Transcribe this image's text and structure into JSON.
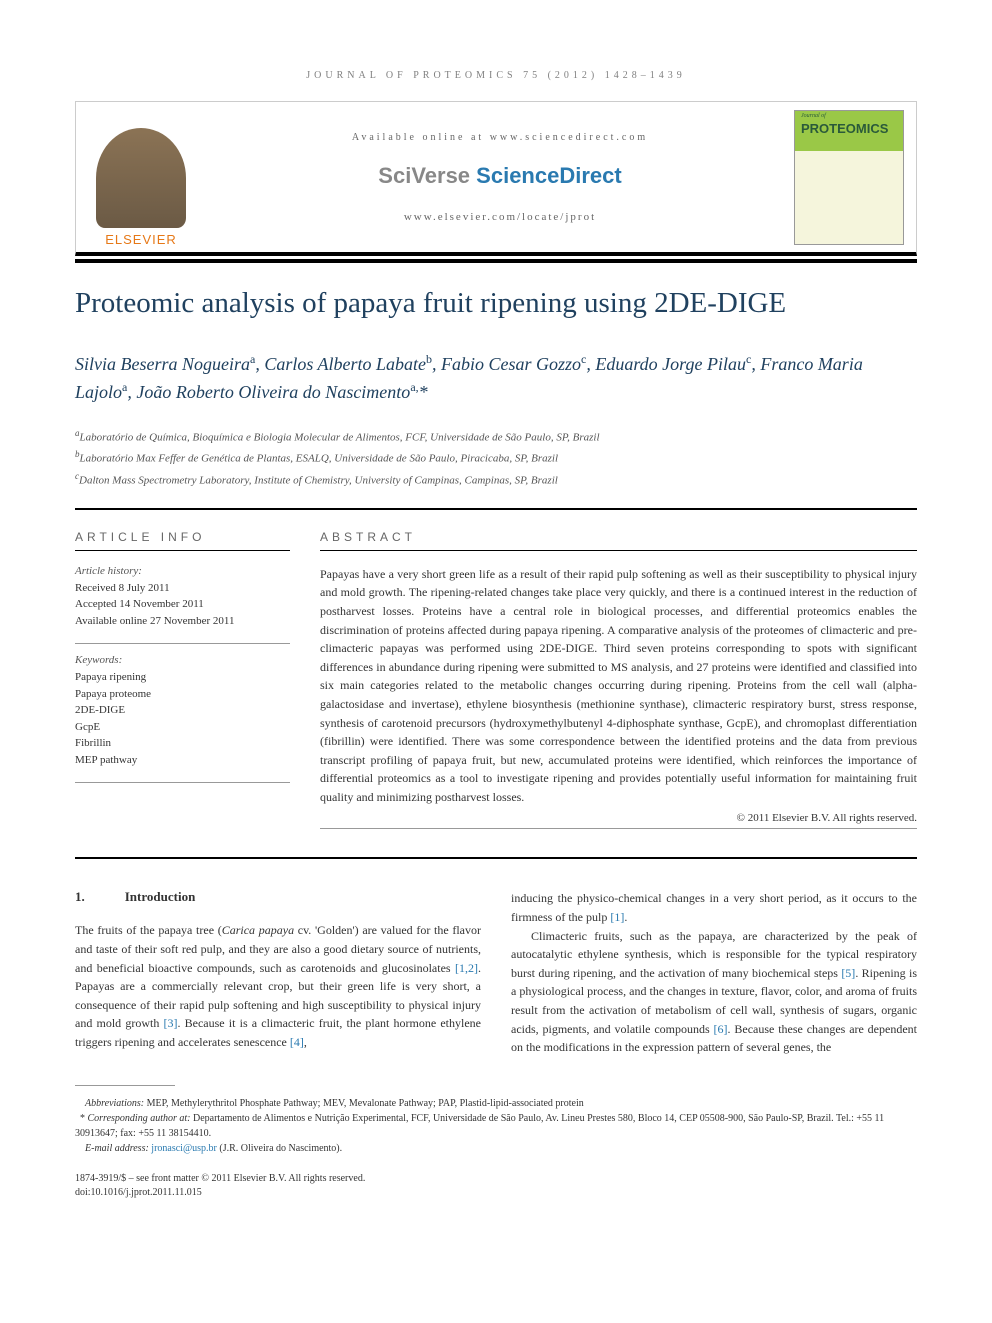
{
  "running_header": "JOURNAL OF PROTEOMICS 75 (2012) 1428–1439",
  "journal_box": {
    "elsevier": "ELSEVIER",
    "available": "Available online at www.sciencedirect.com",
    "sciverse_prefix": "SciVerse ",
    "sciverse_main": "ScienceDirect",
    "url": "www.elsevier.com/locate/jprot",
    "cover_small": "Journal of",
    "cover_title": "PROTEOMICS"
  },
  "article": {
    "title": "Proteomic analysis of papaya fruit ripening using 2DE-DIGE",
    "authors_html": "Silvia Beserra Nogueira<sup>a</sup>, Carlos Alberto Labate<sup>b</sup>, Fabio Cesar Gozzo<sup>c</sup>, Eduardo Jorge Pilau<sup>c</sup>, Franco Maria Lajolo<sup>a</sup>, João Roberto Oliveira do Nascimento<sup>a,</sup>*",
    "affiliations": [
      {
        "sup": "a",
        "text": "Laboratório de Química, Bioquímica e Biologia Molecular de Alimentos, FCF, Universidade de São Paulo, SP, Brazil"
      },
      {
        "sup": "b",
        "text": "Laboratório Max Feffer de Genética de Plantas, ESALQ, Universidade de São Paulo, Piracicaba, SP, Brazil"
      },
      {
        "sup": "c",
        "text": "Dalton Mass Spectrometry Laboratory, Institute of Chemistry, University of Campinas, Campinas, SP, Brazil"
      }
    ]
  },
  "article_info": {
    "heading": "ARTICLE INFO",
    "history_label": "Article history:",
    "history": [
      "Received 8 July 2011",
      "Accepted 14 November 2011",
      "Available online 27 November 2011"
    ],
    "keywords_label": "Keywords:",
    "keywords": [
      "Papaya ripening",
      "Papaya proteome",
      "2DE-DIGE",
      "GcpE",
      "Fibrillin",
      "MEP pathway"
    ]
  },
  "abstract": {
    "heading": "ABSTRACT",
    "text": "Papayas have a very short green life as a result of their rapid pulp softening as well as their susceptibility to physical injury and mold growth. The ripening-related changes take place very quickly, and there is a continued interest in the reduction of postharvest losses. Proteins have a central role in biological processes, and differential proteomics enables the discrimination of proteins affected during papaya ripening. A comparative analysis of the proteomes of climacteric and pre-climacteric papayas was performed using 2DE-DIGE. Third seven proteins corresponding to spots with significant differences in abundance during ripening were submitted to MS analysis, and 27 proteins were identified and classified into six main categories related to the metabolic changes occurring during ripening. Proteins from the cell wall (alpha-galactosidase and invertase), ethylene biosynthesis (methionine synthase), climacteric respiratory burst, stress response, synthesis of carotenoid precursors (hydroxymethylbutenyl 4-diphosphate synthase, GcpE), and chromoplast differentiation (fibrillin) were identified. There was some correspondence between the identified proteins and the data from previous transcript profiling of papaya fruit, but new, accumulated proteins were identified, which reinforces the importance of differential proteomics as a tool to investigate ripening and provides potentially useful information for maintaining fruit quality and minimizing postharvest losses.",
    "copyright": "© 2011 Elsevier B.V. All rights reserved."
  },
  "body": {
    "section_num": "1.",
    "section_title": "Introduction",
    "col1_p1_pre": "The fruits of the papaya tree (",
    "col1_p1_italic": "Carica papaya",
    "col1_p1_post": " cv. 'Golden') are valued for the flavor and taste of their soft red pulp, and they are also a good dietary source of nutrients, and beneficial bioactive compounds, such as carotenoids and glucosinolates ",
    "col1_ref1": "[1,2]",
    "col1_p1_post2": ". Papayas are a commercially relevant crop, but their green life is very short, a consequence of their rapid pulp softening and high susceptibility to physical injury and mold growth ",
    "col1_ref2": "[3]",
    "col1_p1_post3": ". Because it is a climacteric fruit, the plant hormone ethylene triggers ripening and accelerates senescence ",
    "col1_ref3": "[4]",
    "col1_p1_post4": ",",
    "col2_p1": "inducing the physico-chemical changes in a very short period, as it occurs to the firmness of the pulp ",
    "col2_ref1": "[1]",
    "col2_p1_post": ".",
    "col2_p2": "Climacteric fruits, such as the papaya, are characterized by the peak of autocatalytic ethylene synthesis, which is responsible for the typical respiratory burst during ripening, and the activation of many biochemical steps ",
    "col2_ref2": "[5]",
    "col2_p2_post": ". Ripening is a physiological process, and the changes in texture, flavor, color, and aroma of fruits result from the activation of metabolism of cell wall, synthesis of sugars, organic acids, pigments, and volatile compounds ",
    "col2_ref3": "[6]",
    "col2_p2_post2": ". Because these changes are dependent on the modifications in the expression pattern of several genes, the"
  },
  "footer": {
    "abbrev_label": "Abbreviations:",
    "abbrev_text": " MEP, Methylerythritol Phosphate Pathway; MEV, Mevalonate Pathway; PAP, Plastid-lipid-associated protein",
    "corr_label": "Corresponding author at:",
    "corr_text": " Departamento de Alimentos e Nutrição Experimental, FCF, Universidade de São Paulo, Av. Lineu Prestes 580, Bloco 14, CEP 05508-900, São Paulo-SP, Brazil. Tel.: +55 11 30913647; fax: +55 11 38154410.",
    "email_label": "E-mail address: ",
    "email": "jronasci@usp.br",
    "email_post": " (J.R. Oliveira do Nascimento).",
    "issn": "1874-3919/$ – see front matter © 2011 Elsevier B.V. All rights reserved.",
    "doi": "doi:10.1016/j.jprot.2011.11.015"
  },
  "colors": {
    "title_blue": "#20415f",
    "link_blue": "#2a7ab0",
    "elsevier_orange": "#e67817",
    "cover_green": "#9ac847"
  }
}
